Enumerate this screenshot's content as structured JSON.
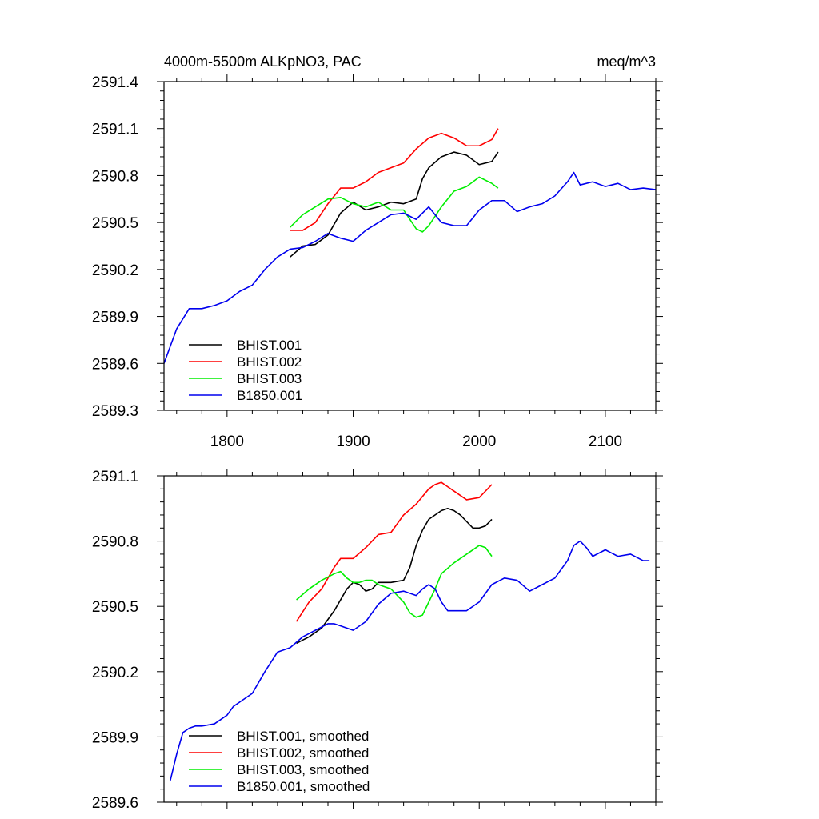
{
  "chart_data": [
    {
      "type": "line",
      "title": "4000m-5500m ALKpNO3, PAC",
      "units": "meq/m^3",
      "xlabel": "",
      "ylabel": "",
      "xlim": [
        1750,
        2140
      ],
      "ylim": [
        2589.3,
        2591.4
      ],
      "xticks": [
        1800,
        1900,
        2000,
        2100
      ],
      "xtick_labels": [
        "1800",
        "1900",
        "2000",
        "2100"
      ],
      "yticks": [
        2589.3,
        2589.6,
        2589.9,
        2590.2,
        2590.5,
        2590.8,
        2591.1,
        2591.4
      ],
      "ytick_labels": [
        "2589.3",
        "2589.6",
        "2589.9",
        "2590.2",
        "2590.5",
        "2590.8",
        "2591.1",
        "2591.4"
      ],
      "legend_position": "bottom-left",
      "series": [
        {
          "name": "BHIST.001",
          "color": "#000000",
          "x": [
            1850,
            1860,
            1870,
            1880,
            1890,
            1900,
            1910,
            1920,
            1930,
            1940,
            1950,
            1955,
            1960,
            1970,
            1980,
            1990,
            2000,
            2010,
            2015
          ],
          "y": [
            2590.28,
            2590.35,
            2590.36,
            2590.42,
            2590.56,
            2590.63,
            2590.58,
            2590.6,
            2590.63,
            2590.62,
            2590.65,
            2590.78,
            2590.85,
            2590.92,
            2590.95,
            2590.93,
            2590.87,
            2590.89,
            2590.95
          ]
        },
        {
          "name": "BHIST.002",
          "color": "#ff0000",
          "x": [
            1850,
            1860,
            1870,
            1880,
            1890,
            1900,
            1910,
            1920,
            1930,
            1940,
            1950,
            1960,
            1970,
            1980,
            1990,
            2000,
            2010,
            2015
          ],
          "y": [
            2590.45,
            2590.45,
            2590.5,
            2590.62,
            2590.72,
            2590.72,
            2590.76,
            2590.82,
            2590.85,
            2590.88,
            2590.97,
            2591.04,
            2591.07,
            2591.04,
            2590.99,
            2590.99,
            2591.03,
            2591.1
          ]
        },
        {
          "name": "BHIST.003",
          "color": "#00ee00",
          "x": [
            1850,
            1860,
            1870,
            1880,
            1890,
            1900,
            1910,
            1920,
            1930,
            1940,
            1950,
            1955,
            1960,
            1970,
            1980,
            1990,
            2000,
            2010,
            2015
          ],
          "y": [
            2590.47,
            2590.55,
            2590.6,
            2590.65,
            2590.66,
            2590.62,
            2590.6,
            2590.63,
            2590.58,
            2590.58,
            2590.46,
            2590.44,
            2590.48,
            2590.6,
            2590.7,
            2590.73,
            2590.79,
            2590.75,
            2590.72
          ]
        },
        {
          "name": "B1850.001",
          "color": "#0000ee",
          "x": [
            1750,
            1760,
            1770,
            1780,
            1790,
            1800,
            1810,
            1820,
            1830,
            1840,
            1850,
            1860,
            1870,
            1880,
            1890,
            1900,
            1910,
            1920,
            1930,
            1940,
            1950,
            1960,
            1970,
            1980,
            1990,
            2000,
            2010,
            2020,
            2030,
            2040,
            2050,
            2060,
            2070,
            2075,
            2080,
            2090,
            2100,
            2110,
            2120,
            2130,
            2140
          ],
          "y": [
            2589.6,
            2589.82,
            2589.95,
            2589.95,
            2589.97,
            2590.0,
            2590.06,
            2590.1,
            2590.2,
            2590.28,
            2590.33,
            2590.34,
            2590.38,
            2590.43,
            2590.4,
            2590.38,
            2590.45,
            2590.5,
            2590.55,
            2590.56,
            2590.52,
            2590.6,
            2590.5,
            2590.48,
            2590.48,
            2590.58,
            2590.64,
            2590.64,
            2590.57,
            2590.6,
            2590.62,
            2590.67,
            2590.76,
            2590.82,
            2590.74,
            2590.76,
            2590.73,
            2590.75,
            2590.71,
            2590.72,
            2590.71
          ]
        }
      ]
    },
    {
      "type": "line",
      "title": "",
      "xlabel": "",
      "ylabel": "",
      "xlim": [
        1750,
        2140
      ],
      "ylim": [
        2589.6,
        2591.1
      ],
      "xticks": [
        1800,
        1900,
        2000,
        2100
      ],
      "xtick_labels": [],
      "yticks": [
        2589.6,
        2589.9,
        2590.2,
        2590.5,
        2590.8,
        2591.1
      ],
      "ytick_labels": [
        "2589.6",
        "2589.9",
        "2590.2",
        "2590.5",
        "2590.8",
        "2591.1"
      ],
      "legend_position": "bottom-left",
      "series": [
        {
          "name": "BHIST.001, smoothed",
          "color": "#000000",
          "x": [
            1855,
            1865,
            1875,
            1885,
            1895,
            1900,
            1905,
            1910,
            1915,
            1920,
            1930,
            1940,
            1945,
            1950,
            1955,
            1960,
            1970,
            1975,
            1980,
            1985,
            1990,
            1995,
            2000,
            2005,
            2010
          ],
          "y": [
            2590.33,
            2590.36,
            2590.4,
            2590.48,
            2590.58,
            2590.61,
            2590.6,
            2590.57,
            2590.58,
            2590.61,
            2590.61,
            2590.62,
            2590.68,
            2590.78,
            2590.85,
            2590.9,
            2590.94,
            2590.95,
            2590.94,
            2590.92,
            2590.89,
            2590.86,
            2590.86,
            2590.87,
            2590.9
          ]
        },
        {
          "name": "BHIST.002, smoothed",
          "color": "#ff0000",
          "x": [
            1855,
            1865,
            1875,
            1885,
            1890,
            1900,
            1910,
            1920,
            1930,
            1940,
            1950,
            1960,
            1965,
            1970,
            1975,
            1980,
            1990,
            2000,
            2010
          ],
          "y": [
            2590.43,
            2590.52,
            2590.58,
            2590.68,
            2590.72,
            2590.72,
            2590.77,
            2590.83,
            2590.84,
            2590.92,
            2590.97,
            2591.04,
            2591.06,
            2591.07,
            2591.05,
            2591.03,
            2590.99,
            2591.0,
            2591.06
          ]
        },
        {
          "name": "BHIST.003, smoothed",
          "color": "#00ee00",
          "x": [
            1855,
            1865,
            1875,
            1885,
            1890,
            1895,
            1900,
            1905,
            1910,
            1915,
            1920,
            1930,
            1940,
            1945,
            1950,
            1955,
            1960,
            1965,
            1970,
            1980,
            1990,
            2000,
            2005,
            2010
          ],
          "y": [
            2590.53,
            2590.58,
            2590.62,
            2590.65,
            2590.66,
            2590.63,
            2590.61,
            2590.61,
            2590.62,
            2590.62,
            2590.6,
            2590.58,
            2590.52,
            2590.47,
            2590.45,
            2590.46,
            2590.52,
            2590.58,
            2590.65,
            2590.7,
            2590.74,
            2590.78,
            2590.77,
            2590.73
          ]
        },
        {
          "name": "B1850.001, smoothed",
          "color": "#0000ee",
          "x": [
            1755,
            1760,
            1765,
            1770,
            1775,
            1780,
            1790,
            1800,
            1805,
            1810,
            1820,
            1830,
            1840,
            1850,
            1860,
            1870,
            1880,
            1885,
            1890,
            1900,
            1910,
            1920,
            1930,
            1940,
            1950,
            1955,
            1960,
            1965,
            1970,
            1975,
            1980,
            1990,
            2000,
            2010,
            2020,
            2030,
            2040,
            2050,
            2060,
            2070,
            2075,
            2080,
            2085,
            2090,
            2100,
            2110,
            2120,
            2130,
            2135
          ],
          "y": [
            2589.7,
            2589.82,
            2589.92,
            2589.94,
            2589.95,
            2589.95,
            2589.96,
            2590.0,
            2590.04,
            2590.06,
            2590.1,
            2590.2,
            2590.29,
            2590.31,
            2590.36,
            2590.39,
            2590.42,
            2590.42,
            2590.41,
            2590.39,
            2590.43,
            2590.51,
            2590.56,
            2590.57,
            2590.55,
            2590.58,
            2590.6,
            2590.58,
            2590.52,
            2590.48,
            2590.48,
            2590.48,
            2590.52,
            2590.6,
            2590.63,
            2590.62,
            2590.57,
            2590.6,
            2590.63,
            2590.71,
            2590.78,
            2590.8,
            2590.77,
            2590.73,
            2590.76,
            2590.73,
            2590.74,
            2590.71,
            2590.71
          ]
        }
      ]
    }
  ]
}
